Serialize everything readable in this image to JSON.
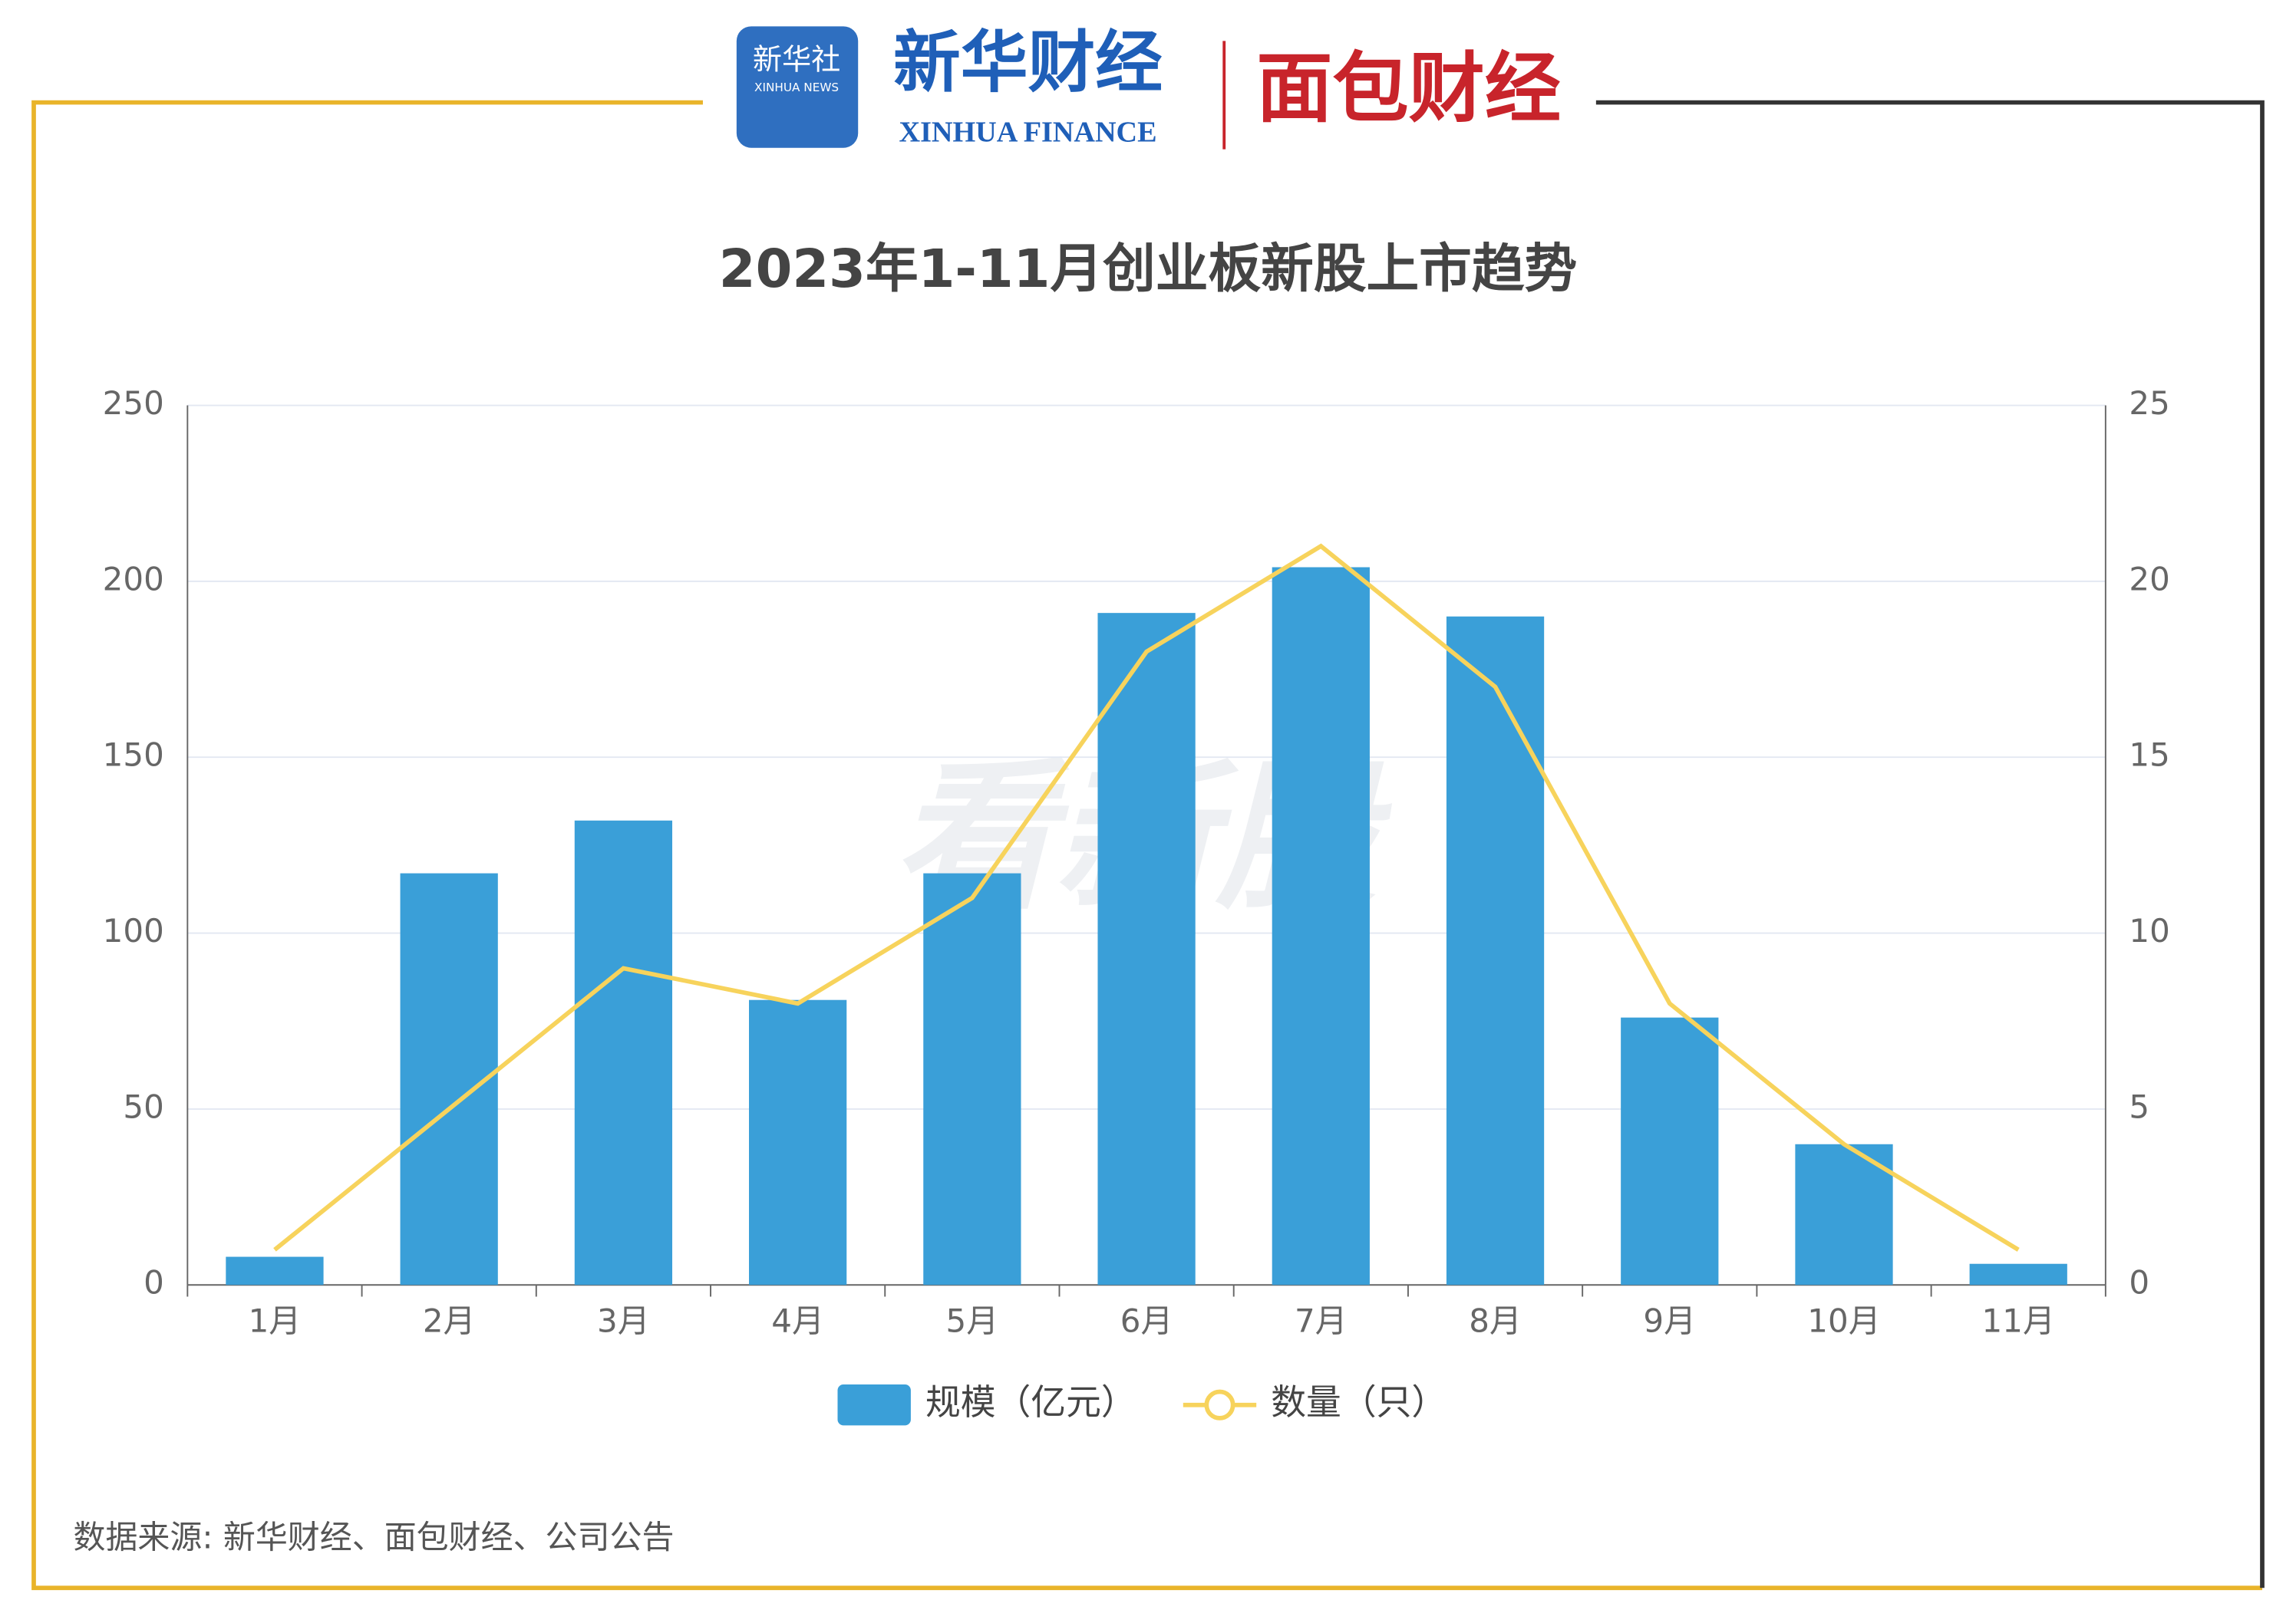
{
  "header": {
    "logo1": "新华社",
    "logo1_en": "XINHUA NEWS",
    "logo2": "新华财经",
    "logo2_en": "XINHUA FINANCE",
    "logo3": "面包财经",
    "watermark": "看新股"
  },
  "chart_data": {
    "type": "bar",
    "title": "2023年1-11月创业板新股上市趋势",
    "categories": [
      "1月",
      "2月",
      "3月",
      "4月",
      "5月",
      "6月",
      "7月",
      "8月",
      "9月",
      "10月",
      "11月"
    ],
    "series": [
      {
        "name": "规模（亿元）",
        "color": "#3a9fd8",
        "type": "bar",
        "values": [
          8,
          117,
          132,
          81,
          117,
          191,
          204,
          190,
          76,
          40,
          6
        ]
      },
      {
        "name": "数量（只）",
        "color": "#f7d35c",
        "type": "line",
        "axis": "y2",
        "values": [
          1,
          5,
          9,
          8,
          11,
          18,
          21,
          17,
          8,
          4,
          1
        ]
      }
    ],
    "ylim": [
      0,
      250
    ],
    "yticks": [
      0,
      50,
      100,
      150,
      200,
      250
    ],
    "y2lim": [
      0,
      25
    ],
    "y2ticks": [
      0,
      5,
      10,
      15,
      20,
      25
    ],
    "grid": true
  },
  "footer": {
    "source": "数据来源: 新华财经、面包财经、公司公告"
  }
}
